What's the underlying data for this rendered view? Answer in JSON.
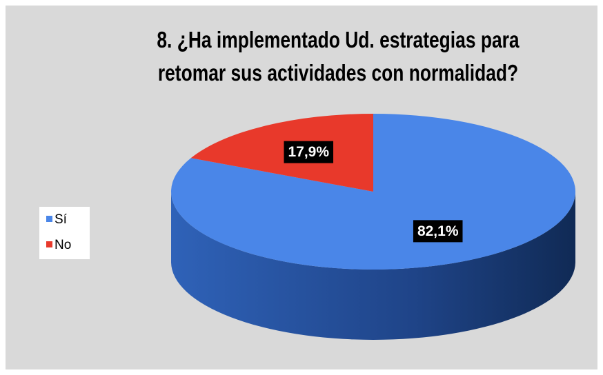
{
  "chart_data": {
    "type": "pie",
    "title": "8. ¿Ha implementado Ud. estrategias para retomar sus actividades con normalidad?",
    "categories": [
      "Sí",
      "No"
    ],
    "values": [
      82.1,
      17.9
    ],
    "value_labels": [
      "82,1%",
      "17,9%"
    ],
    "colors": [
      "#4a86e8",
      "#e8392b"
    ],
    "legend": "left"
  }
}
